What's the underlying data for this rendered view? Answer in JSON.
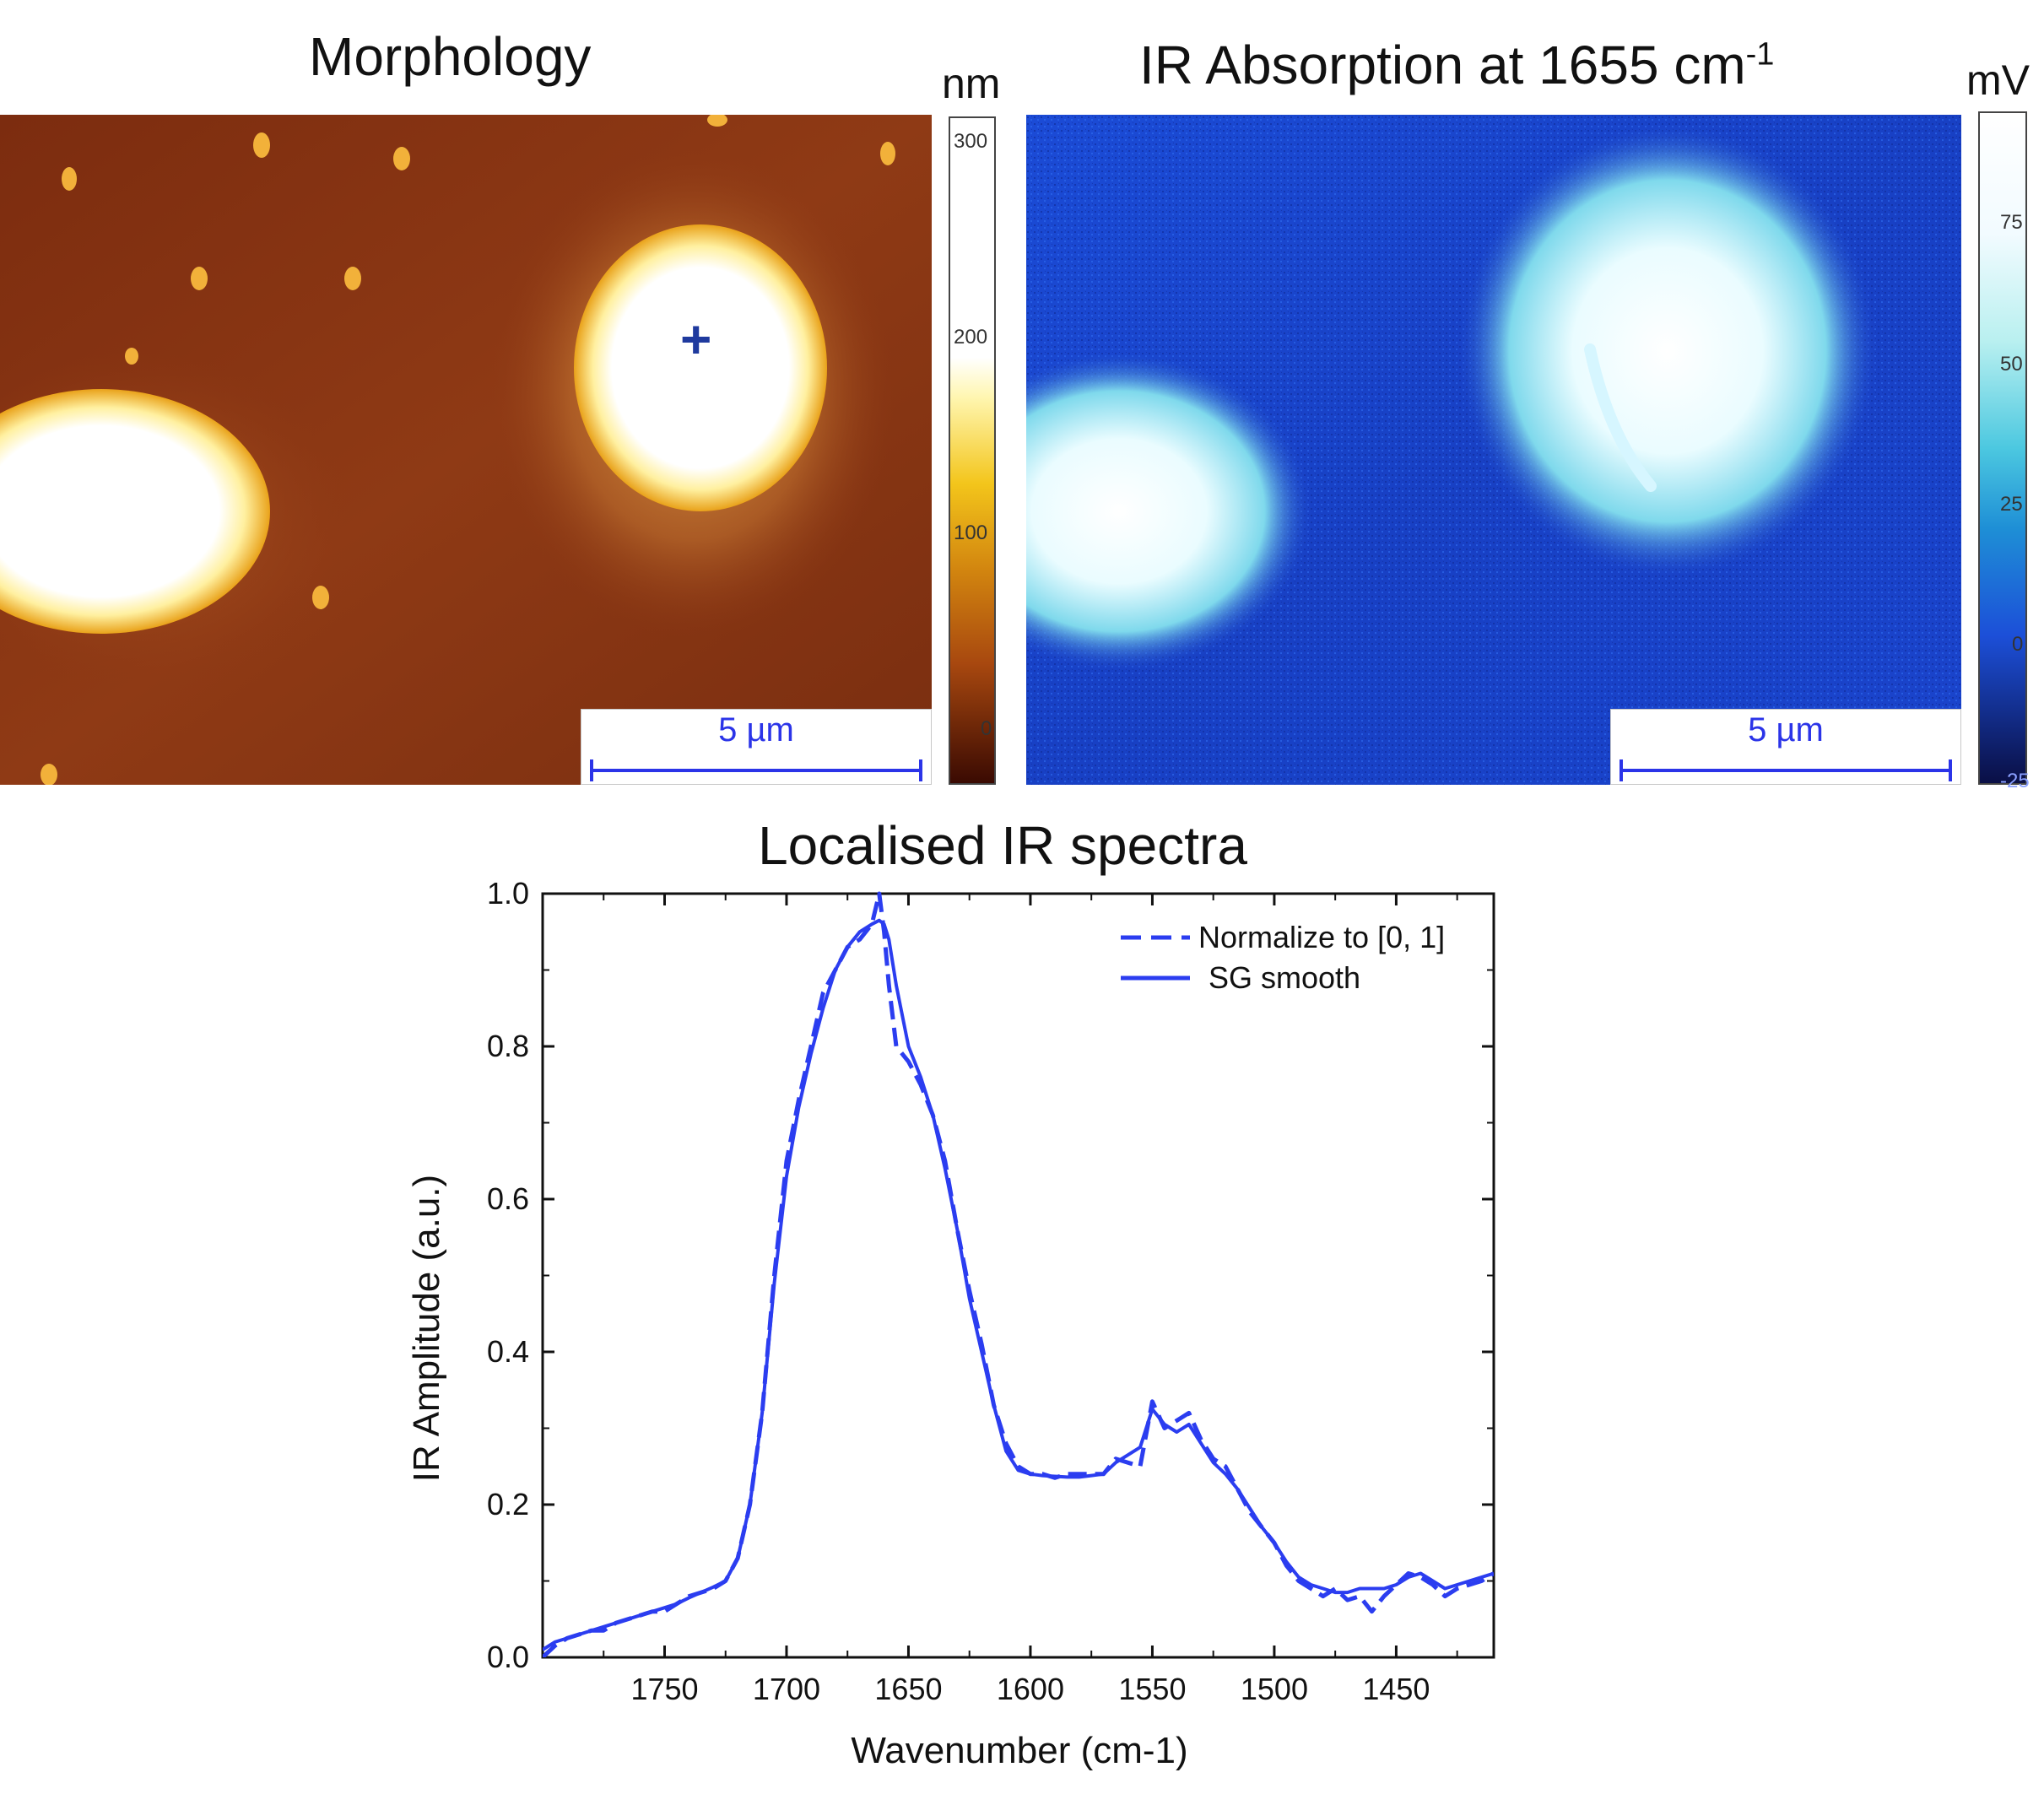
{
  "panels": {
    "morphology": {
      "title": "Morphology",
      "unit": "nm",
      "colorbar_ticks": [
        "300",
        "200",
        "100",
        "0"
      ],
      "scale_bar": "5 µm",
      "marker": "+"
    },
    "ir_absorption": {
      "title_main": "IR Absorption at 1655 cm",
      "title_sup": "-1",
      "unit": "mV",
      "colorbar_ticks": [
        "75",
        "50",
        "25",
        "0",
        "-25"
      ],
      "scale_bar": "5 µm"
    }
  },
  "colors": {
    "morphology_map": [
      "#2a0500",
      "#8a3411",
      "#d8930d",
      "#fff1a0",
      "#ffffff"
    ],
    "ir_map": [
      "#0a0f45",
      "#1c46d8",
      "#20a2d9",
      "#9ff0ea",
      "#ffffff"
    ],
    "line": "#2b3df0",
    "marker": "#1f3a9e"
  },
  "chart_data": {
    "type": "line",
    "title": "Localised IR spectra",
    "xlabel": "Wavenumber (cm-1)",
    "ylabel": "IR Amplitude (a.u.)",
    "xlim": [
      1800,
      1410
    ],
    "ylim": [
      0,
      1.0
    ],
    "x_reversed": true,
    "xticks": [
      "1750",
      "1700",
      "1650",
      "1600",
      "1550",
      "1500",
      "1450"
    ],
    "yticks": [
      "0.0",
      "0.2",
      "0.4",
      "0.6",
      "0.8",
      "1.0"
    ],
    "legend_position": "top-right",
    "series": [
      {
        "name": "Normalize to [0, 1]",
        "style": "dashed",
        "x": [
          1800,
          1795,
          1790,
          1785,
          1780,
          1775,
          1770,
          1765,
          1760,
          1755,
          1750,
          1745,
          1740,
          1735,
          1730,
          1725,
          1720,
          1715,
          1710,
          1705,
          1700,
          1695,
          1690,
          1685,
          1680,
          1675,
          1670,
          1665,
          1662,
          1660,
          1658,
          1655,
          1650,
          1645,
          1640,
          1635,
          1630,
          1625,
          1620,
          1615,
          1610,
          1605,
          1600,
          1595,
          1590,
          1585,
          1580,
          1575,
          1570,
          1565,
          1560,
          1555,
          1550,
          1545,
          1540,
          1535,
          1530,
          1525,
          1520,
          1515,
          1510,
          1505,
          1500,
          1495,
          1490,
          1485,
          1480,
          1475,
          1470,
          1465,
          1460,
          1455,
          1450,
          1445,
          1440,
          1435,
          1430,
          1425,
          1420,
          1415,
          1410
        ],
        "y": [
          0.0,
          0.015,
          0.025,
          0.03,
          0.035,
          0.035,
          0.045,
          0.05,
          0.055,
          0.06,
          0.06,
          0.07,
          0.08,
          0.085,
          0.09,
          0.1,
          0.13,
          0.2,
          0.32,
          0.5,
          0.65,
          0.73,
          0.8,
          0.87,
          0.9,
          0.93,
          0.94,
          0.96,
          1.0,
          0.95,
          0.88,
          0.8,
          0.78,
          0.75,
          0.71,
          0.65,
          0.56,
          0.48,
          0.41,
          0.33,
          0.28,
          0.25,
          0.24,
          0.24,
          0.235,
          0.24,
          0.24,
          0.24,
          0.24,
          0.26,
          0.255,
          0.25,
          0.335,
          0.3,
          0.31,
          0.32,
          0.285,
          0.26,
          0.25,
          0.22,
          0.19,
          0.17,
          0.15,
          0.12,
          0.1,
          0.09,
          0.08,
          0.09,
          0.075,
          0.08,
          0.06,
          0.08,
          0.095,
          0.11,
          0.105,
          0.095,
          0.08,
          0.09,
          0.095,
          0.1,
          0.11
        ]
      },
      {
        "name": "SG smooth",
        "style": "solid",
        "x": [
          1800,
          1795,
          1790,
          1785,
          1780,
          1775,
          1770,
          1765,
          1760,
          1755,
          1750,
          1745,
          1740,
          1735,
          1730,
          1725,
          1720,
          1715,
          1710,
          1705,
          1700,
          1695,
          1690,
          1685,
          1680,
          1675,
          1670,
          1665,
          1662,
          1660,
          1658,
          1655,
          1650,
          1645,
          1640,
          1635,
          1630,
          1625,
          1620,
          1615,
          1610,
          1605,
          1600,
          1595,
          1590,
          1585,
          1580,
          1575,
          1570,
          1565,
          1560,
          1555,
          1550,
          1545,
          1540,
          1535,
          1530,
          1525,
          1520,
          1515,
          1510,
          1505,
          1500,
          1495,
          1490,
          1485,
          1480,
          1475,
          1470,
          1465,
          1460,
          1455,
          1450,
          1445,
          1440,
          1435,
          1430,
          1425,
          1420,
          1415,
          1410
        ],
        "y": [
          0.01,
          0.02,
          0.025,
          0.03,
          0.035,
          0.04,
          0.045,
          0.05,
          0.055,
          0.06,
          0.065,
          0.07,
          0.078,
          0.085,
          0.092,
          0.1,
          0.13,
          0.2,
          0.32,
          0.49,
          0.63,
          0.72,
          0.79,
          0.85,
          0.9,
          0.93,
          0.95,
          0.96,
          0.965,
          0.96,
          0.94,
          0.88,
          0.8,
          0.76,
          0.71,
          0.64,
          0.56,
          0.47,
          0.4,
          0.33,
          0.27,
          0.245,
          0.24,
          0.238,
          0.237,
          0.236,
          0.236,
          0.238,
          0.24,
          0.255,
          0.265,
          0.275,
          0.325,
          0.305,
          0.295,
          0.305,
          0.28,
          0.255,
          0.24,
          0.22,
          0.195,
          0.17,
          0.15,
          0.125,
          0.105,
          0.095,
          0.09,
          0.085,
          0.085,
          0.09,
          0.09,
          0.09,
          0.095,
          0.105,
          0.11,
          0.1,
          0.09,
          0.095,
          0.1,
          0.105,
          0.11
        ]
      }
    ]
  }
}
